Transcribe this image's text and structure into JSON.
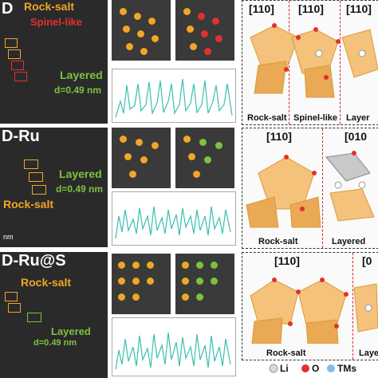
{
  "panels": [
    {
      "stem_label": "D",
      "phase_labels": [
        "Rock-salt",
        "Spinel-like",
        "Layered",
        "d=0.49 nm"
      ],
      "schematic": {
        "headers": [
          "[110]",
          "[110]",
          "[110]"
        ],
        "footers": [
          "Rock-salt",
          "Spinel-like",
          "Layer"
        ]
      }
    },
    {
      "stem_label": "D-Ru",
      "phase_labels": [
        "Layered",
        "Rock-salt",
        "d=0.49 nm",
        "nm"
      ],
      "schematic": {
        "headers": [
          "[110]",
          "[010"
        ],
        "footers": [
          "Rock-salt",
          "Layered"
        ]
      }
    },
    {
      "stem_label": "D-Ru@S",
      "phase_labels": [
        "Rock-salt",
        "Layered",
        "d=0.49 nm"
      ],
      "schematic": {
        "headers": [
          "[110]",
          "[0"
        ],
        "footers": [
          "Rock-salt",
          "Laye"
        ]
      }
    }
  ],
  "legend": {
    "items": [
      "Li",
      "O",
      "TMs"
    ]
  },
  "colors": {
    "rocksalt": "#f2a626",
    "spinel": "#e23030",
    "layered": "#7dc23f",
    "plot": "#3bbfb0"
  }
}
